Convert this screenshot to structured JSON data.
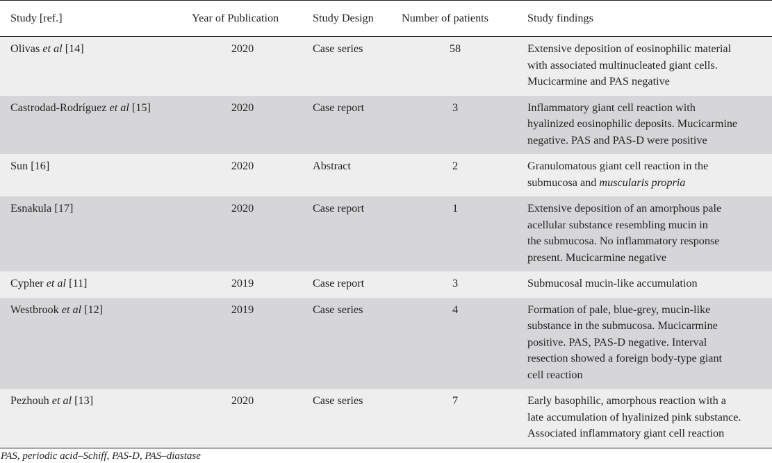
{
  "table": {
    "headers": {
      "study": "Study [ref.]",
      "year": "Year of Publication",
      "design": "Study Design",
      "patients": "Number of patients",
      "findings": "Study findings"
    },
    "rows": [
      {
        "study_name": "Olivas",
        "study_etal": "et al",
        "study_ref": "[14]",
        "year": "2020",
        "design": "Case series",
        "patients": "58",
        "findings_lines": [
          "Extensive deposition of eosinophilic material",
          "with associated multinucleated giant cells.",
          "Mucicarmine and PAS negative"
        ]
      },
      {
        "study_name": "Castrodad-Rodríguez",
        "study_etal": "et al",
        "study_ref": "[15]",
        "year": "2020",
        "design": "Case report",
        "patients": "3",
        "findings_lines": [
          "Inflammatory giant cell reaction with",
          "hyalinized eosinophilic deposits. Mucicarmine",
          "negative. PAS and PAS-D were positive"
        ]
      },
      {
        "study_name": "Sun",
        "study_etal": "",
        "study_ref": "[16]",
        "year": "2020",
        "design": "Abstract",
        "patients": "2",
        "findings_line1": "Granulomatous giant cell reaction in the",
        "findings_line2_plain": "submucosa and ",
        "findings_line2_italic": "muscularis propria"
      },
      {
        "study_name": "Esnakula",
        "study_etal": "",
        "study_ref": "[17]",
        "year": "2020",
        "design": "Case report",
        "patients": "1",
        "findings_lines": [
          "Extensive deposition of an amorphous pale",
          "acellular substance resembling mucin in",
          "the submucosa. No inflammatory response",
          "present. Mucicarmine negative"
        ]
      },
      {
        "study_name": "Cypher",
        "study_etal": "et al",
        "study_ref": "[11]",
        "year": "2019",
        "design": "Case report",
        "patients": "3",
        "findings_lines": [
          "Submucosal mucin-like accumulation"
        ]
      },
      {
        "study_name": "Westbrook",
        "study_etal": "et al",
        "study_ref": "[12]",
        "year": "2019",
        "design": "Case series",
        "patients": "4",
        "findings_lines": [
          "Formation of pale, blue-grey, mucin-like",
          "substance in the submucosa. Mucicarmine",
          "positive. PAS, PAS-D negative. Interval",
          "resection showed a foreign body-type giant",
          "cell reaction"
        ]
      },
      {
        "study_name": "Pezhouh",
        "study_etal": "et al",
        "study_ref": "[13]",
        "year": "2020",
        "design": "Case series",
        "patients": "7",
        "findings_lines": [
          "Early basophilic, amorphous reaction with a",
          "late accumulation of hyalinized pink substance.",
          "Associated inflammatory giant cell reaction"
        ]
      }
    ]
  },
  "footnote": "PAS, periodic acid–Schiff, PAS-D, PAS–diastase",
  "colors": {
    "row_shade_light": "#eeeeee",
    "row_shade_dark": "#d6d6d8",
    "text": "#231f20",
    "rule": "#231f20"
  }
}
